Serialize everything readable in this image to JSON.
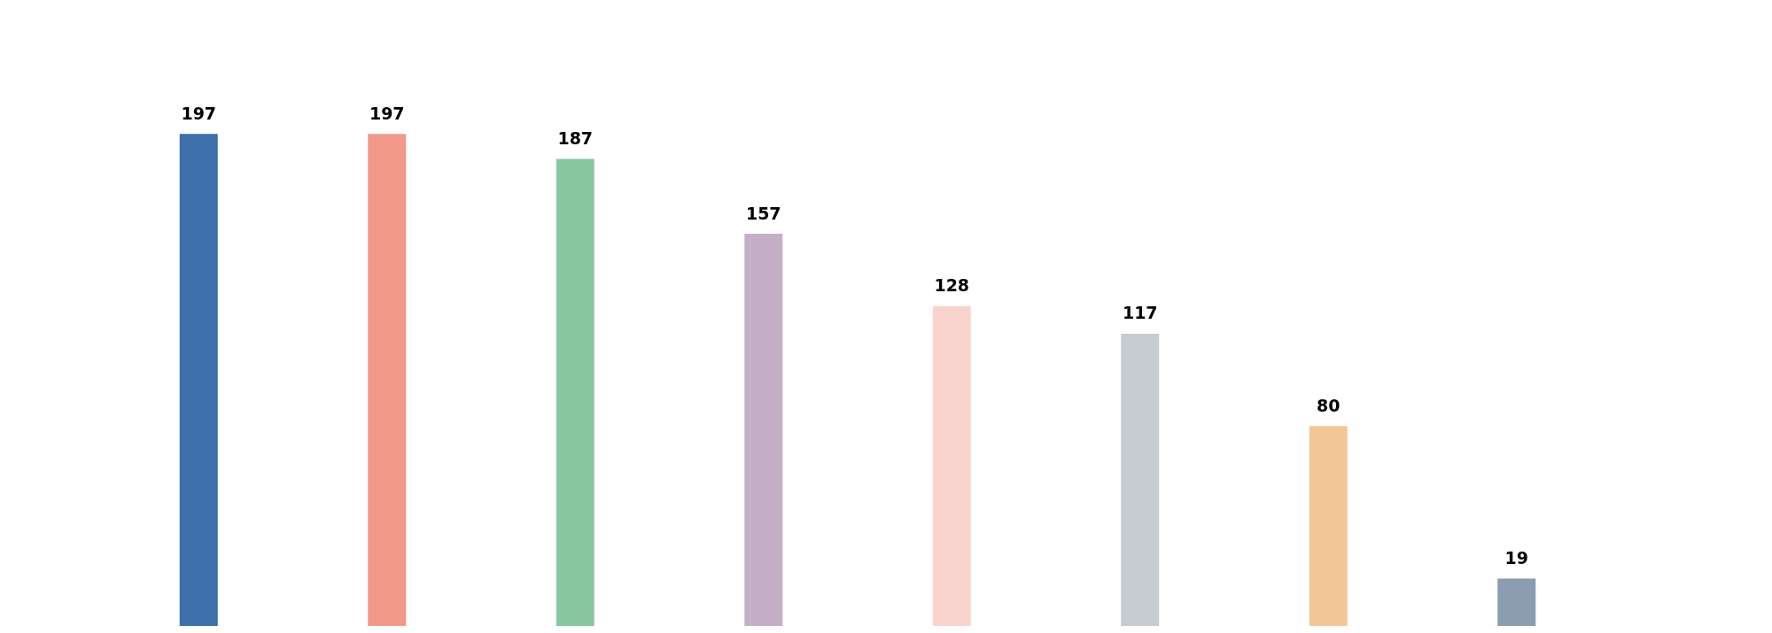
{
  "chart_data": {
    "type": "bar",
    "categories": [
      null,
      null,
      null,
      null,
      null,
      null,
      null,
      null
    ],
    "values": [
      197,
      197,
      187,
      157,
      128,
      117,
      80,
      19
    ],
    "colors": [
      "#3d6fab",
      "#f2998c",
      "#88c6a2",
      "#c5afc7",
      "#f9d3cd",
      "#c5cdd0",
      "#f2c695",
      "#8a9db1"
    ],
    "data_labels": true
  }
}
